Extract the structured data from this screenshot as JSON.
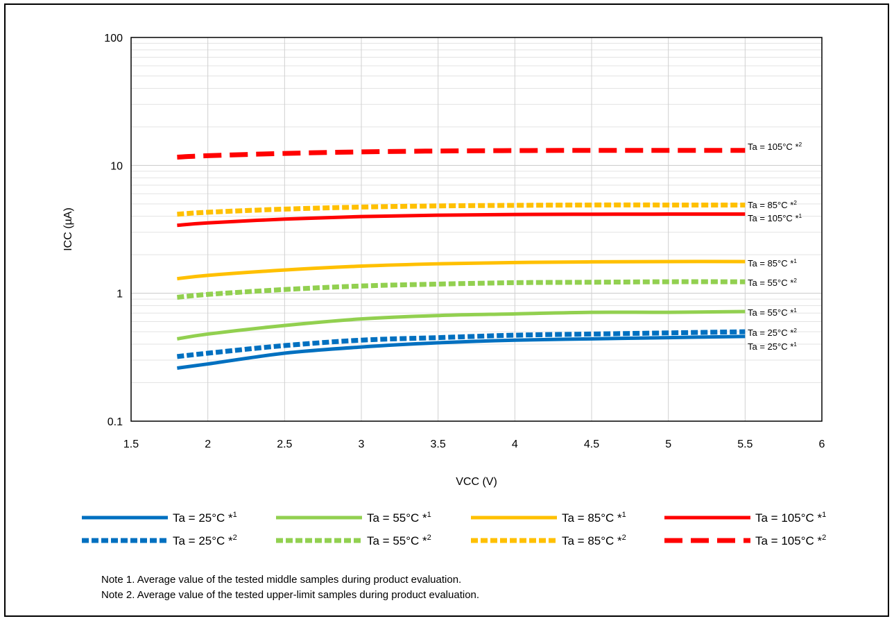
{
  "chart_data": {
    "type": "line",
    "title": "",
    "xlabel": "VCC (V)",
    "ylabel": "ICC (µA)",
    "x_scale": "linear",
    "y_scale": "log",
    "xlim": [
      1.5,
      6
    ],
    "ylim": [
      0.1,
      100
    ],
    "x_ticks": [
      "1.5",
      "2",
      "2.5",
      "3",
      "3.5",
      "4",
      "4.5",
      "5",
      "5.5",
      "6"
    ],
    "y_ticks": [
      "0.1",
      "1",
      "10",
      "100"
    ],
    "grid": true,
    "legend_position": "bottom",
    "series": [
      {
        "name": "Ta = 25°C",
        "note": "*1",
        "color": "#0070c0",
        "style": "solid",
        "x": [
          1.8,
          2.0,
          2.5,
          3.0,
          3.5,
          4.0,
          4.5,
          5.0,
          5.5
        ],
        "y": [
          0.26,
          0.28,
          0.34,
          0.38,
          0.41,
          0.43,
          0.44,
          0.45,
          0.46
        ]
      },
      {
        "name": "Ta = 55°C",
        "note": "*1",
        "color": "#92d050",
        "style": "solid",
        "x": [
          1.8,
          2.0,
          2.5,
          3.0,
          3.5,
          4.0,
          4.5,
          5.0,
          5.5
        ],
        "y": [
          0.44,
          0.48,
          0.56,
          0.63,
          0.67,
          0.69,
          0.71,
          0.71,
          0.72
        ]
      },
      {
        "name": "Ta = 85°C",
        "note": "*1",
        "color": "#ffc000",
        "style": "solid",
        "x": [
          1.8,
          2.0,
          2.5,
          3.0,
          3.5,
          4.0,
          4.5,
          5.0,
          5.5
        ],
        "y": [
          1.3,
          1.38,
          1.52,
          1.63,
          1.7,
          1.74,
          1.76,
          1.77,
          1.77
        ]
      },
      {
        "name": "Ta = 105°C",
        "note": "*1",
        "color": "#ff0000",
        "style": "solid",
        "x": [
          1.8,
          2.0,
          2.5,
          3.0,
          3.5,
          4.0,
          4.5,
          5.0,
          5.5
        ],
        "y": [
          3.4,
          3.55,
          3.8,
          3.98,
          4.08,
          4.13,
          4.15,
          4.16,
          4.16
        ]
      },
      {
        "name": "Ta = 25°C",
        "note": "*2",
        "color": "#0070c0",
        "style": "dotted",
        "x": [
          1.8,
          2.0,
          2.5,
          3.0,
          3.5,
          4.0,
          4.5,
          5.0,
          5.5
        ],
        "y": [
          0.32,
          0.34,
          0.39,
          0.43,
          0.45,
          0.47,
          0.48,
          0.49,
          0.5
        ]
      },
      {
        "name": "Ta = 55°C",
        "note": "*2",
        "color": "#92d050",
        "style": "dotted",
        "x": [
          1.8,
          2.0,
          2.5,
          3.0,
          3.5,
          4.0,
          4.5,
          5.0,
          5.5
        ],
        "y": [
          0.93,
          0.98,
          1.07,
          1.14,
          1.18,
          1.21,
          1.22,
          1.23,
          1.23
        ]
      },
      {
        "name": "Ta = 85°C",
        "note": "*2",
        "color": "#ffc000",
        "style": "dotted",
        "x": [
          1.8,
          2.0,
          2.5,
          3.0,
          3.5,
          4.0,
          4.5,
          5.0,
          5.5
        ],
        "y": [
          4.15,
          4.3,
          4.55,
          4.72,
          4.82,
          4.87,
          4.9,
          4.9,
          4.9
        ]
      },
      {
        "name": "Ta = 105°C",
        "note": "*2",
        "color": "#ff0000",
        "style": "dashed",
        "x": [
          1.8,
          2.0,
          2.5,
          3.0,
          3.5,
          4.0,
          4.5,
          5.0,
          5.5
        ],
        "y": [
          11.6,
          11.9,
          12.4,
          12.75,
          12.95,
          13.05,
          13.1,
          13.1,
          13.1
        ]
      }
    ],
    "legend_order": [
      0,
      1,
      2,
      3,
      4,
      5,
      6,
      7
    ],
    "notes": [
      "Note 1.  Average value of the tested middle samples during product evaluation.",
      "Note 2.  Average value of the tested upper-limit samples during product evaluation."
    ]
  }
}
